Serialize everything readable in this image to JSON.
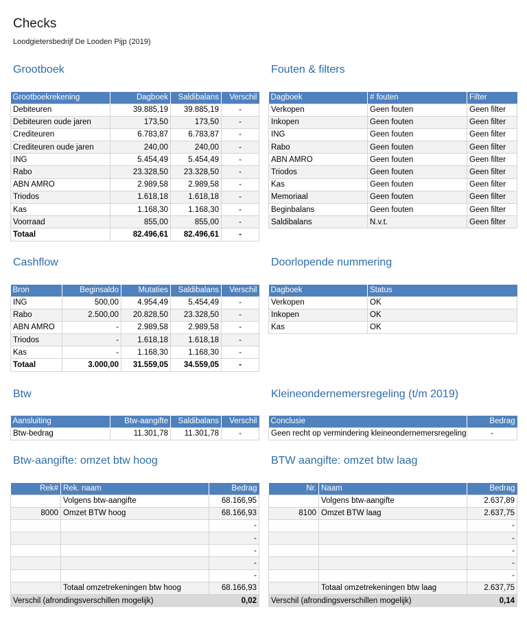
{
  "title": "Checks",
  "subtitle": "Loodgietersbedrijf De Looden Pijp (2019)",
  "grootboek": {
    "title": "Grootboek",
    "headers": [
      "Grootboekrekening",
      "Dagboek",
      "Saldibalans",
      "Verschil"
    ],
    "rows": [
      [
        "Debiteuren",
        "39.885,19",
        "39.885,19",
        "-"
      ],
      [
        "Debiteuren oude jaren",
        "173,50",
        "173,50",
        "-"
      ],
      [
        "Crediteuren",
        "6.783,87",
        "6.783,87",
        "-"
      ],
      [
        "Crediteuren oude jaren",
        "240,00",
        "240,00",
        "-"
      ],
      [
        "ING",
        "5.454,49",
        "5.454,49",
        "-"
      ],
      [
        "Rabo",
        "23.328,50",
        "23.328,50",
        "-"
      ],
      [
        "ABN AMRO",
        "2.989,58",
        "2.989,58",
        "-"
      ],
      [
        "Triodos",
        "1.618,18",
        "1.618,18",
        "-"
      ],
      [
        "Kas",
        "1.168,30",
        "1.168,30",
        "-"
      ],
      [
        "Voorraad",
        "855,00",
        "855,00",
        "-"
      ]
    ],
    "total": [
      "Totaal",
      "82.496,61",
      "82.496,61",
      "-"
    ]
  },
  "fouten": {
    "title": "Fouten & filters",
    "headers": [
      "Dagboek",
      "# fouten",
      "Filter"
    ],
    "rows": [
      [
        "Verkopen",
        "Geen fouten",
        "Geen filter"
      ],
      [
        "Inkopen",
        "Geen fouten",
        "Geen filter"
      ],
      [
        "ING",
        "Geen fouten",
        "Geen filter"
      ],
      [
        "Rabo",
        "Geen fouten",
        "Geen filter"
      ],
      [
        "ABN AMRO",
        "Geen fouten",
        "Geen filter"
      ],
      [
        "Triodos",
        "Geen fouten",
        "Geen filter"
      ],
      [
        "Kas",
        "Geen fouten",
        "Geen filter"
      ],
      [
        "Memoriaal",
        "Geen fouten",
        "Geen filter"
      ],
      [
        "Beginbalans",
        "Geen fouten",
        "Geen filter"
      ],
      [
        "Saldibalans",
        "N.v.t.",
        "Geen filter"
      ]
    ]
  },
  "cashflow": {
    "title": "Cashflow",
    "headers": [
      "Bron",
      "Beginsaldo",
      "Mutaties",
      "Saldibalans",
      "Verschil"
    ],
    "rows": [
      [
        "ING",
        "500,00",
        "4.954,49",
        "5.454,49",
        "-"
      ],
      [
        "Rabo",
        "2.500,00",
        "20.828,50",
        "23.328,50",
        "-"
      ],
      [
        "ABN AMRO",
        "-",
        "2.989,58",
        "2.989,58",
        "-"
      ],
      [
        "Triodos",
        "-",
        "1.618,18",
        "1.618,18",
        "-"
      ],
      [
        "Kas",
        "-",
        "1.168,30",
        "1.168,30",
        "-"
      ]
    ],
    "total": [
      "Totaal",
      "3.000,00",
      "31.559,05",
      "34.559,05",
      "-"
    ]
  },
  "nummering": {
    "title": "Doorlopende nummering",
    "headers": [
      "Dagboek",
      "Status"
    ],
    "rows": [
      [
        "Verkopen",
        "OK"
      ],
      [
        "Inkopen",
        "OK"
      ],
      [
        "Kas",
        "OK"
      ]
    ]
  },
  "btw": {
    "title": "Btw",
    "headers": [
      "Aansluiting",
      "Btw-aangifte",
      "Saldibalans",
      "Verschil"
    ],
    "row": [
      "Btw-bedrag",
      "11.301,78",
      "11.301,78",
      "-"
    ]
  },
  "kor": {
    "title": "Kleineondernemersregeling (t/m 2019)",
    "headers": [
      "Conclusie",
      "Bedrag"
    ],
    "row": [
      "Geen recht op vermindering kleineondernemersregeling",
      "-"
    ]
  },
  "btw_hoog": {
    "title": "Btw-aangifte: omzet btw hoog",
    "headers": [
      "Rek#",
      "Rek. naam",
      "Bedrag"
    ],
    "rows": [
      [
        "",
        "Volgens btw-aangifte",
        "68.166,95"
      ],
      [
        "8000",
        "Omzet BTW hoog",
        "68.166,93"
      ],
      [
        "",
        "",
        "-"
      ],
      [
        "",
        "",
        "-"
      ],
      [
        "",
        "",
        "-"
      ],
      [
        "",
        "",
        "-"
      ],
      [
        "",
        "",
        "-"
      ],
      [
        "",
        "Totaal omzetrekeningen btw hoog",
        "68.166,93"
      ]
    ],
    "diff": [
      "Verschil (afrondingsverschillen mogelijk)",
      "0,02"
    ]
  },
  "btw_laag": {
    "title": "BTW aangifte: omzet btw laag",
    "headers": [
      "Nr.",
      "Naam",
      "Bedrag"
    ],
    "rows": [
      [
        "",
        "Volgens btw-aangifte",
        "2.637,89"
      ],
      [
        "8100",
        "Omzet BTW laag",
        "2.637,75"
      ],
      [
        "",
        "",
        "-"
      ],
      [
        "",
        "",
        "-"
      ],
      [
        "",
        "",
        "-"
      ],
      [
        "",
        "",
        "-"
      ],
      [
        "",
        "",
        "-"
      ],
      [
        "",
        "Totaal omzetrekeningen btw laag",
        "2.637,75"
      ]
    ],
    "diff": [
      "Verschil (afrondingsverschillen mogelijk)",
      "0,14"
    ]
  }
}
